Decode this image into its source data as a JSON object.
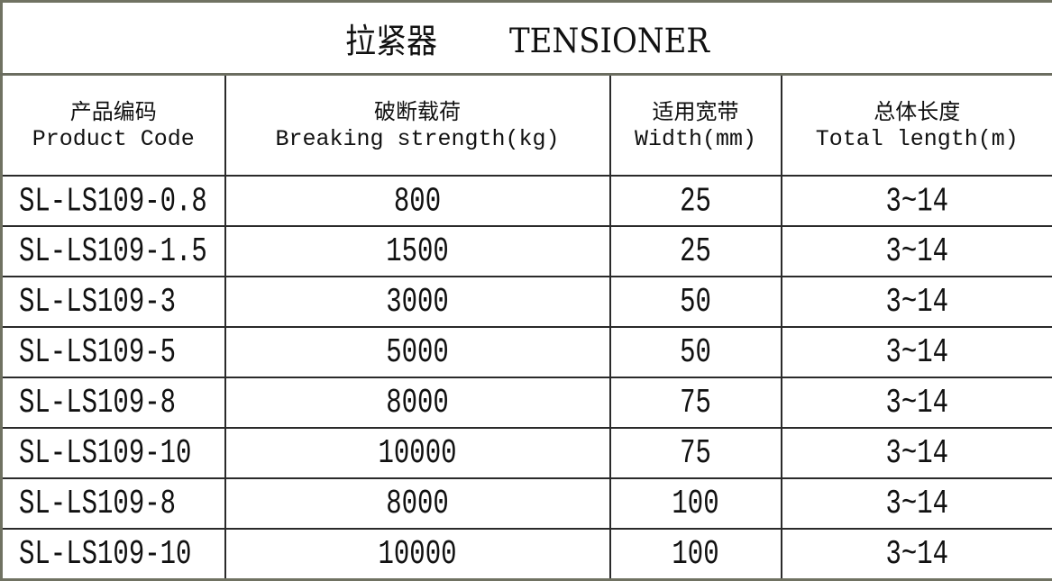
{
  "title": {
    "zh": "拉紧器",
    "en": "TENSIONER"
  },
  "columns": [
    {
      "zh": "产品编码",
      "en": "Product Code"
    },
    {
      "zh": "破断载荷",
      "en": "Breaking strength(kg)"
    },
    {
      "zh": "适用宽带",
      "en": "Width(mm)"
    },
    {
      "zh": "总体长度",
      "en": "Total length(m)"
    }
  ],
  "rows": [
    [
      "SL-LS109-0.8",
      "800",
      "25",
      "3~14"
    ],
    [
      "SL-LS109-1.5",
      "1500",
      "25",
      "3~14"
    ],
    [
      "SL-LS109-3",
      "3000",
      "50",
      "3~14"
    ],
    [
      "SL-LS109-5",
      "5000",
      "50",
      "3~14"
    ],
    [
      "SL-LS109-8",
      "8000",
      "75",
      "3~14"
    ],
    [
      "SL-LS109-10",
      "10000",
      "75",
      "3~14"
    ],
    [
      "SL-LS109-8",
      "8000",
      "100",
      "3~14"
    ],
    [
      "SL-LS109-10",
      "10000",
      "100",
      "3~14"
    ]
  ]
}
